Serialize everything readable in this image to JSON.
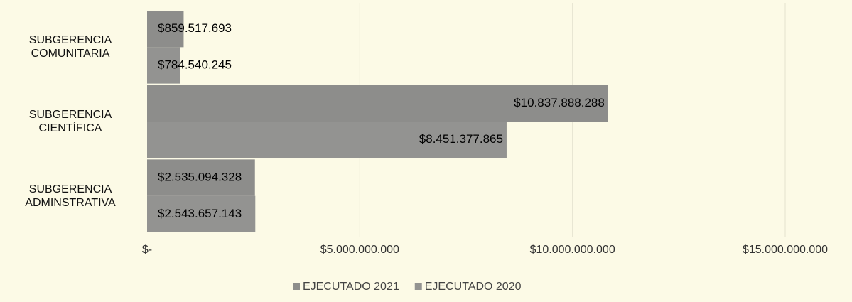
{
  "chart_data": {
    "type": "hbar",
    "categories": [
      "SUBGERENCIA\nCOMUNITARIA",
      "SUBGERENCIA\nCIENTÍFICA",
      "SUBGERENCIA\nADMINSTRATIVA"
    ],
    "series": [
      {
        "name": "EJECUTADO 2021",
        "color": "#8d8d8b",
        "values": [
          859517693,
          10837888288,
          2535094328
        ],
        "value_labels": [
          "$859.517.693",
          "$10.837.888.288",
          "$2.535.094.328"
        ]
      },
      {
        "name": "EJECUTADO 2020",
        "color": "#939391",
        "values": [
          784540245,
          8451377865,
          2543657143
        ],
        "value_labels": [
          "$784.540.245",
          "$8.451.377.865",
          "$2.543.657.143"
        ]
      }
    ],
    "xlim": [
      0,
      15000000000
    ],
    "xticks": [
      {
        "value": 0,
        "label": "$-"
      },
      {
        "value": 5000000000,
        "label": "$5.000.000.000"
      },
      {
        "value": 10000000000,
        "label": "$10.000.000.000"
      },
      {
        "value": 15000000000,
        "label": "$15.000.000.000"
      }
    ],
    "grid": true,
    "legend": "bottom"
  }
}
